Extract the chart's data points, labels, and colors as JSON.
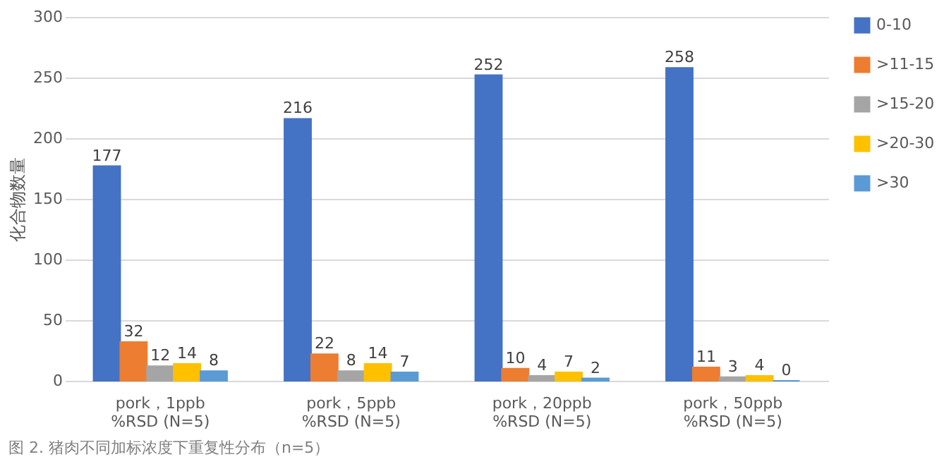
{
  "chart_data": {
    "type": "bar",
    "ylabel": "化合物数量",
    "categories": [
      "pork，1ppb\n%RSD (N=5)",
      "pork，5ppb\n%RSD (N=5)",
      "pork，20ppb\n%RSD (N=5)",
      "pork，50ppb\n%RSD (N=5)"
    ],
    "series": [
      {
        "name": "0-10",
        "color": "#4472c4",
        "values": [
          177,
          216,
          252,
          258
        ]
      },
      {
        "name": ">11-15",
        "color": "#ed7d31",
        "values": [
          32,
          22,
          10,
          11
        ]
      },
      {
        "name": ">15-20",
        "color": "#a5a5a5",
        "values": [
          12,
          8,
          4,
          3
        ]
      },
      {
        "name": ">20-30",
        "color": "#ffc000",
        "values": [
          14,
          14,
          7,
          4
        ]
      },
      {
        "name": ">30",
        "color": "#5b9bd5",
        "values": [
          8,
          7,
          2,
          0
        ]
      }
    ],
    "ylim": [
      0,
      300
    ],
    "yticks": [
      0,
      50,
      100,
      150,
      200,
      250,
      300
    ],
    "grid": "y",
    "legend": "right",
    "data_labels": true,
    "annotations": [
      "图 2. 猪肉不同加标浓度下重复性分布（n=5）"
    ]
  }
}
